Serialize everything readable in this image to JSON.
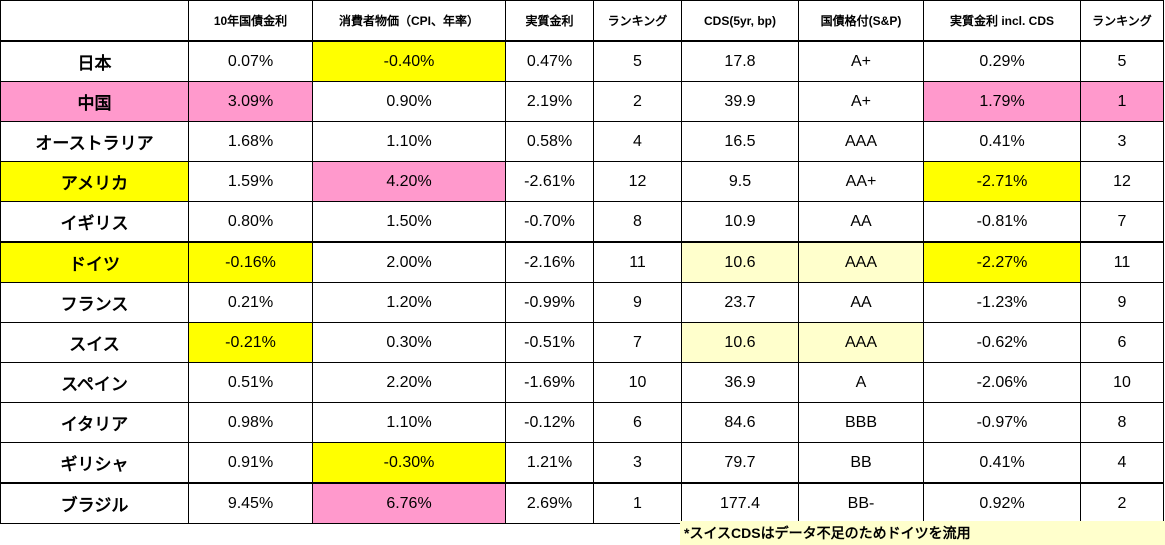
{
  "table": {
    "headers": [
      "",
      "10年国債金利",
      "消費者物価（CPI、年率）",
      "実質金利",
      "ランキング",
      "CDS(5yr, bp)",
      "国債格付(S&P)",
      "実質金利 incl. CDS",
      "ランキング"
    ],
    "rows": [
      [
        "日本",
        "0.07%",
        "-0.40%",
        "0.47%",
        "5",
        "17.8",
        "A+",
        "0.29%",
        "5"
      ],
      [
        "中国",
        "3.09%",
        "0.90%",
        "2.19%",
        "2",
        "39.9",
        "A+",
        "1.79%",
        "1"
      ],
      [
        "オーストラリア",
        "1.68%",
        "1.10%",
        "0.58%",
        "4",
        "16.5",
        "AAA",
        "0.41%",
        "3"
      ],
      [
        "アメリカ",
        "1.59%",
        "4.20%",
        "-2.61%",
        "12",
        "9.5",
        "AA+",
        "-2.71%",
        "12"
      ],
      [
        "イギリス",
        "0.80%",
        "1.50%",
        "-0.70%",
        "8",
        "10.9",
        "AA",
        "-0.81%",
        "7"
      ],
      [
        "ドイツ",
        "-0.16%",
        "2.00%",
        "-2.16%",
        "11",
        "10.6",
        "AAA",
        "-2.27%",
        "11"
      ],
      [
        "フランス",
        "0.21%",
        "1.20%",
        "-0.99%",
        "9",
        "23.7",
        "AA",
        "-1.23%",
        "9"
      ],
      [
        "スイス",
        "-0.21%",
        "0.30%",
        "-0.51%",
        "7",
        "10.6",
        "AAA",
        "-0.62%",
        "6"
      ],
      [
        "スペイン",
        "0.51%",
        "2.20%",
        "-1.69%",
        "10",
        "36.9",
        "A",
        "-2.06%",
        "10"
      ],
      [
        "イタリア",
        "0.98%",
        "1.10%",
        "-0.12%",
        "6",
        "84.6",
        "BBB",
        "-0.97%",
        "8"
      ],
      [
        "ギリシャ",
        "0.91%",
        "-0.30%",
        "1.21%",
        "3",
        "79.7",
        "BB",
        "0.41%",
        "4"
      ],
      [
        "ブラジル",
        "9.45%",
        "6.76%",
        "2.69%",
        "1",
        "177.4",
        "BB-",
        "0.92%",
        "2"
      ]
    ],
    "highlights": {
      "0": {
        "2": "yellow"
      },
      "1": {
        "0": "pink",
        "1": "pink",
        "7": "pink",
        "8": "pink"
      },
      "3": {
        "0": "yellow",
        "2": "pink",
        "7": "yellow"
      },
      "5": {
        "0": "yellow",
        "1": "yellow",
        "5": "cream",
        "6": "cream",
        "7": "yellow"
      },
      "7": {
        "1": "yellow",
        "5": "cream",
        "6": "cream"
      },
      "10": {
        "2": "yellow"
      },
      "11": {
        "2": "pink"
      }
    },
    "highlight_colors": {
      "yellow": "#ffff00",
      "pink": "#ff99cc",
      "cream": "#ffffcc"
    }
  },
  "footnote": "*スイスCDSはデータ不足のためドイツを流用"
}
